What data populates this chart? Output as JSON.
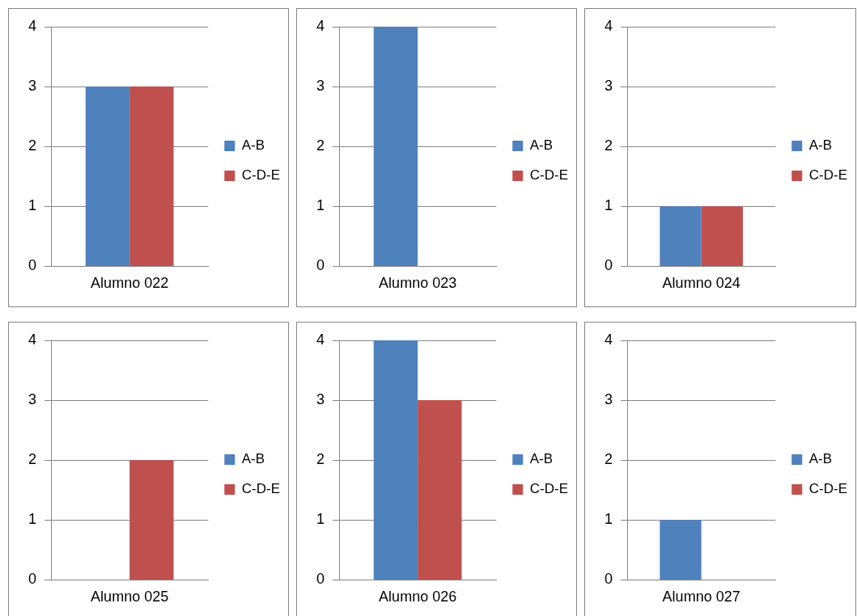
{
  "chart_data": [
    {
      "type": "bar",
      "categories": [
        "Alumno 022"
      ],
      "series": [
        {
          "name": "A-B",
          "color": "#4f81bd",
          "values": [
            3
          ]
        },
        {
          "name": "C-D-E",
          "color": "#c0504d",
          "values": [
            3
          ]
        }
      ],
      "ylim": [
        0,
        4
      ],
      "yticks": [
        0,
        1,
        2,
        3,
        4
      ],
      "grid": "y",
      "legend": "right"
    },
    {
      "type": "bar",
      "categories": [
        "Alumno 023"
      ],
      "series": [
        {
          "name": "A-B",
          "color": "#4f81bd",
          "values": [
            4
          ]
        },
        {
          "name": "C-D-E",
          "color": "#c0504d",
          "values": [
            0
          ]
        }
      ],
      "ylim": [
        0,
        4
      ],
      "yticks": [
        0,
        1,
        2,
        3,
        4
      ],
      "grid": "y",
      "legend": "right"
    },
    {
      "type": "bar",
      "categories": [
        "Alumno 024"
      ],
      "series": [
        {
          "name": "A-B",
          "color": "#4f81bd",
          "values": [
            1
          ]
        },
        {
          "name": "C-D-E",
          "color": "#c0504d",
          "values": [
            1
          ]
        }
      ],
      "ylim": [
        0,
        4
      ],
      "yticks": [
        0,
        1,
        2,
        3,
        4
      ],
      "grid": "y",
      "legend": "right"
    },
    {
      "type": "bar",
      "categories": [
        "Alumno 025"
      ],
      "series": [
        {
          "name": "A-B",
          "color": "#4f81bd",
          "values": [
            0
          ]
        },
        {
          "name": "C-D-E",
          "color": "#c0504d",
          "values": [
            2
          ]
        }
      ],
      "ylim": [
        0,
        4
      ],
      "yticks": [
        0,
        1,
        2,
        3,
        4
      ],
      "grid": "y",
      "legend": "right"
    },
    {
      "type": "bar",
      "categories": [
        "Alumno 026"
      ],
      "series": [
        {
          "name": "A-B",
          "color": "#4f81bd",
          "values": [
            4
          ]
        },
        {
          "name": "C-D-E",
          "color": "#c0504d",
          "values": [
            3
          ]
        }
      ],
      "ylim": [
        0,
        4
      ],
      "yticks": [
        0,
        1,
        2,
        3,
        4
      ],
      "grid": "y",
      "legend": "right"
    },
    {
      "type": "bar",
      "categories": [
        "Alumno 027"
      ],
      "series": [
        {
          "name": "A-B",
          "color": "#4f81bd",
          "values": [
            1
          ]
        },
        {
          "name": "C-D-E",
          "color": "#c0504d",
          "values": [
            0
          ]
        }
      ],
      "ylim": [
        0,
        4
      ],
      "yticks": [
        0,
        1,
        2,
        3,
        4
      ],
      "grid": "y",
      "legend": "right"
    }
  ]
}
